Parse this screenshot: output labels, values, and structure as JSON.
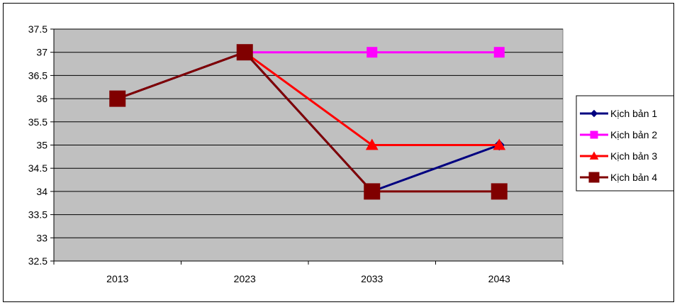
{
  "chart_data": {
    "type": "line",
    "categories": [
      "2013",
      "2023",
      "2033",
      "2043"
    ],
    "ylim": [
      32.5,
      37.5
    ],
    "ystep": 0.5,
    "y_ticks": [
      "32.5",
      "33",
      "33.5",
      "34",
      "34.5",
      "35",
      "35.5",
      "36",
      "36.5",
      "37",
      "37.5"
    ],
    "grid": true,
    "plot_background": "#c0c0c0",
    "legend_position": "right",
    "title": "",
    "xlabel": "",
    "ylabel": "",
    "series": [
      {
        "name": "Kịch bản 1",
        "values": [
          36,
          37,
          34,
          35
        ],
        "color": "#000080",
        "marker": "diamond"
      },
      {
        "name": "Kịch bản 2",
        "values": [
          null,
          37,
          37,
          37
        ],
        "color": "#ff00ff",
        "marker": "square"
      },
      {
        "name": "Kịch bản 3",
        "values": [
          null,
          37,
          35,
          35
        ],
        "color": "#ff0000",
        "marker": "triangle"
      },
      {
        "name": "Kịch bản 4",
        "values": [
          36,
          37,
          34,
          34
        ],
        "color": "#800000",
        "marker": "square"
      }
    ]
  }
}
